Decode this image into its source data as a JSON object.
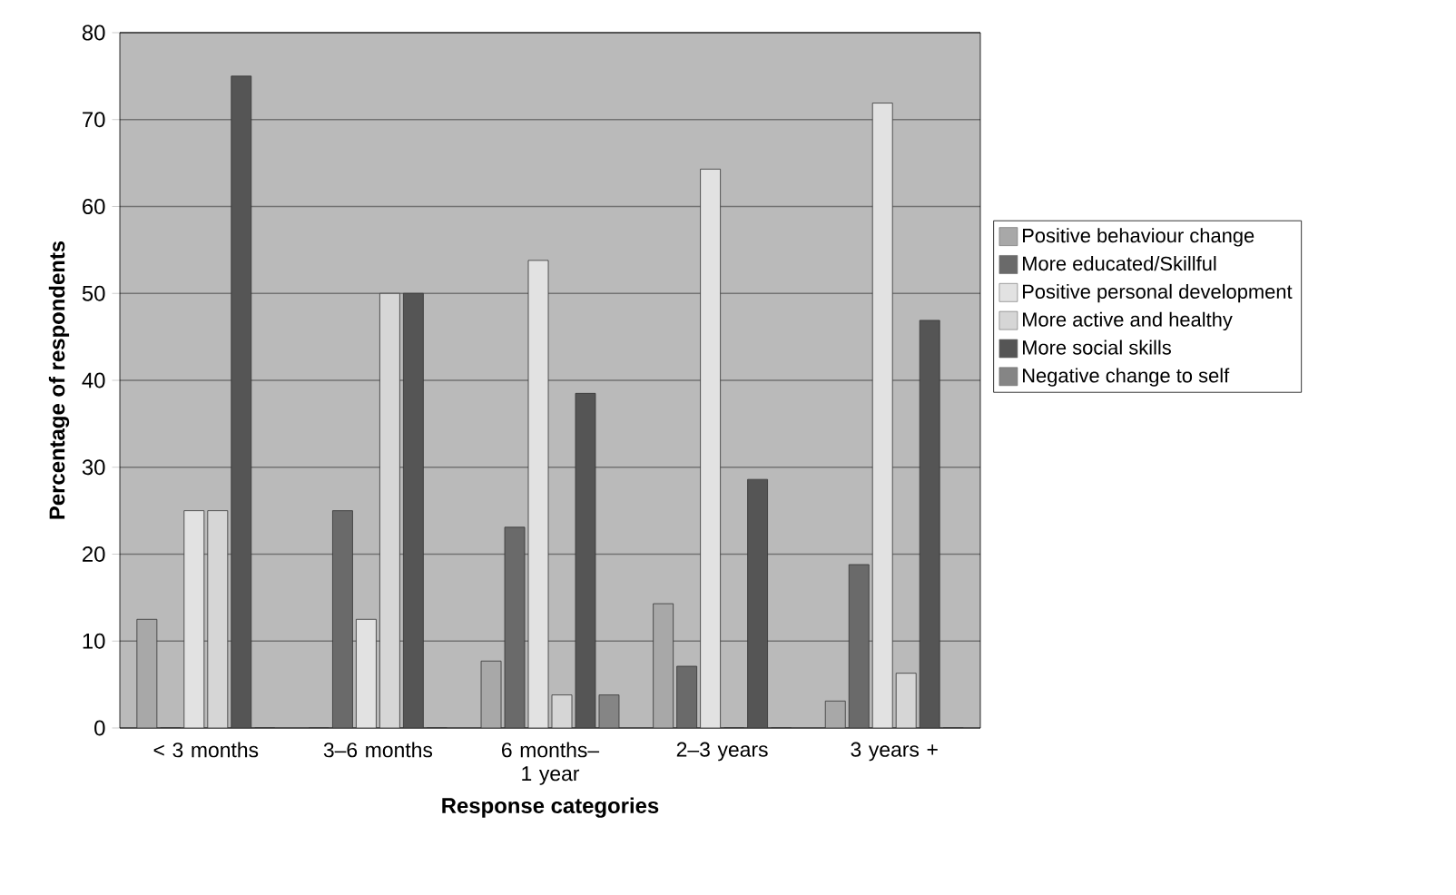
{
  "chart_data": {
    "type": "bar",
    "xlabel": "Response categories",
    "ylabel": "Percentage of respondents",
    "categories": [
      "< 3 months",
      "3–6 months",
      "6 months– 1 year",
      "2–3 years",
      "3 years +"
    ],
    "series": [
      {
        "name": "Positive behaviour change",
        "color": "#a8a8a8",
        "values": [
          12.5,
          0,
          7.7,
          14.3,
          3.1
        ]
      },
      {
        "name": "More educated/Skillful",
        "color": "#6a6a6a",
        "values": [
          0,
          25,
          23.1,
          7.1,
          18.8
        ]
      },
      {
        "name": "Positive personal development",
        "color": "#e2e2e2",
        "values": [
          25,
          12.5,
          53.8,
          64.3,
          71.9
        ]
      },
      {
        "name": "More active and healthy",
        "color": "#d6d6d6",
        "values": [
          25,
          50,
          3.8,
          0,
          6.3
        ]
      },
      {
        "name": "More social skills",
        "color": "#555555",
        "values": [
          75,
          50,
          38.5,
          28.6,
          46.9
        ]
      },
      {
        "name": "Negative change to self",
        "color": "#858585",
        "values": [
          0,
          0,
          3.8,
          0,
          0
        ]
      }
    ],
    "ylim": [
      0,
      80
    ],
    "yticks": [
      0,
      10,
      20,
      30,
      40,
      50,
      60,
      70,
      80
    ],
    "grid": "y",
    "legend": "right"
  }
}
